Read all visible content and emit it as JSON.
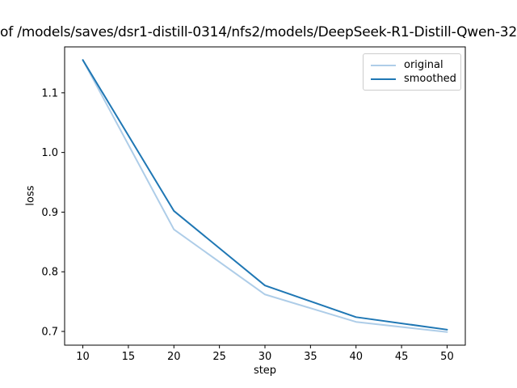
{
  "chart_data": {
    "type": "line",
    "title_visible": "of /models/saves/dsr1-distill-0314/nfs2/models/DeepSeek-R1-Distill-Qwen-32",
    "xlabel": "step",
    "ylabel": "loss",
    "x": [
      10,
      20,
      30,
      40,
      50
    ],
    "series": [
      {
        "name": "original",
        "color": "#aecde8",
        "values": [
          1.155,
          0.871,
          0.762,
          0.716,
          0.699
        ]
      },
      {
        "name": "smoothed",
        "color": "#1f77b4",
        "values": [
          1.155,
          0.902,
          0.777,
          0.724,
          0.703
        ]
      }
    ],
    "xlim": [
      8,
      52
    ],
    "ylim": [
      0.677,
      1.177
    ],
    "x_ticks": [
      10,
      15,
      20,
      25,
      30,
      35,
      40,
      45,
      50
    ],
    "x_tick_labels": [
      "10",
      "15",
      "20",
      "25",
      "30",
      "35",
      "40",
      "45",
      "50"
    ],
    "y_ticks": [
      0.7,
      0.8,
      0.9,
      1.0,
      1.1
    ],
    "y_tick_labels": [
      "0.7",
      "0.8",
      "0.9",
      "1.0",
      "1.1"
    ],
    "grid": false,
    "legend_position": "upper right",
    "axis_color": "#000000",
    "background": "#ffffff"
  }
}
